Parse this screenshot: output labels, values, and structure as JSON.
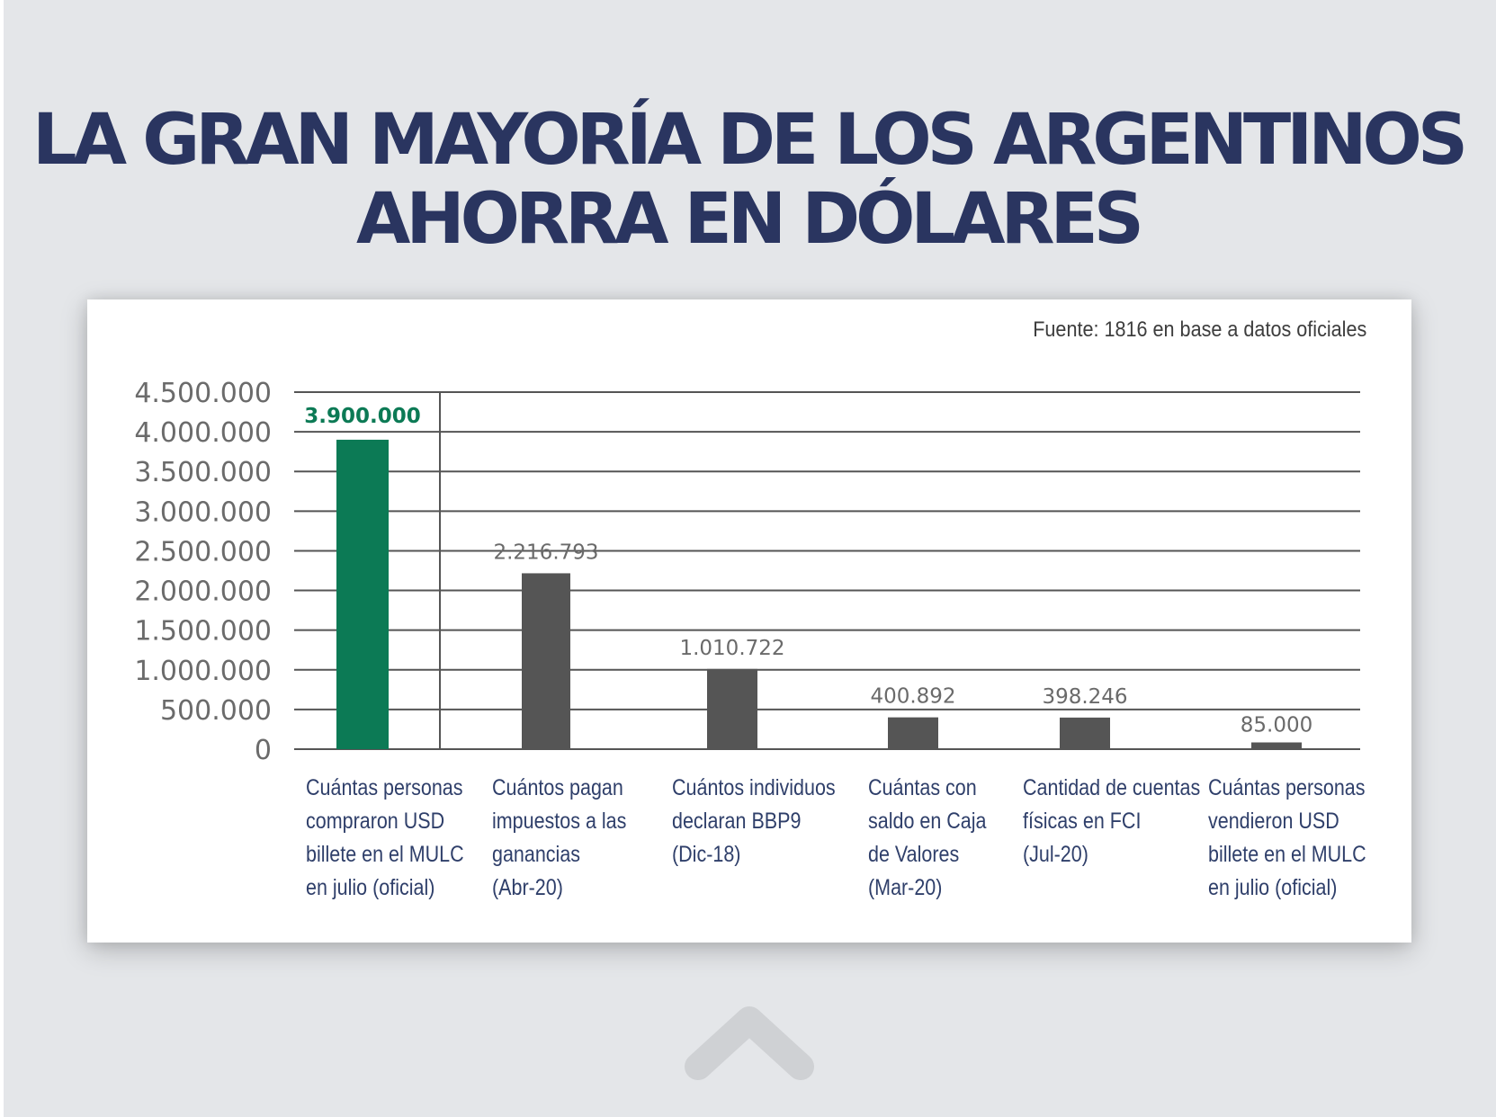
{
  "headline": {
    "line1": "LA GRAN MAYORÍA DE LOS ARGENTINOS",
    "line2": "AHORRA EN DÓLARES"
  },
  "source": "Fuente: 1816 en base a datos oficiales",
  "chart_data": {
    "type": "bar",
    "title": "LA GRAN MAYORÍA DE LOS ARGENTINOS AHORRA EN DÓLARES",
    "xlabel": "",
    "ylabel": "",
    "ylim": [
      0,
      4500000
    ],
    "yticks": [
      0,
      500000,
      1000000,
      1500000,
      2000000,
      2500000,
      3000000,
      3500000,
      4000000,
      4500000
    ],
    "ytick_labels": [
      "0",
      "500.000",
      "1.000.000",
      "1.500.000",
      "2.000.000",
      "2.500.000",
      "3.000.000",
      "3.500.000",
      "4.000.000",
      "4.500.000"
    ],
    "grid": true,
    "categories": [
      [
        "Cuántas personas",
        "compraron USD",
        "billete en el MULC",
        "en julio (oficial)"
      ],
      [
        "Cuántos pagan",
        "impuestos a las",
        "ganancias",
        "(Abr-20)"
      ],
      [
        "Cuántos individuos",
        "declaran BBP9",
        "(Dic-18)"
      ],
      [
        "Cuántas con",
        "saldo en Caja",
        "de Valores",
        "(Mar-20)"
      ],
      [
        "Cantidad de cuentas",
        "físicas en FCI",
        "(Jul-20)"
      ],
      [
        "Cuántas personas",
        "vendieron USD",
        "billete en el MULC",
        "en julio (oficial)"
      ]
    ],
    "values": [
      3900000,
      2216793,
      1010722,
      400892,
      398246,
      85000
    ],
    "value_labels": [
      "3.900.000",
      "2.216.793",
      "1.010.722",
      "400.892",
      "398.246",
      "85.000"
    ],
    "highlight_index": 0,
    "colors": {
      "highlight": "#0c7a55",
      "bar": "#555555",
      "grid": "#555555",
      "axis_text": "#6b6b6b",
      "category_text": "#2f3f6a",
      "title": "#2a3560"
    }
  },
  "icons": {
    "nav": "chevron-up-icon"
  }
}
